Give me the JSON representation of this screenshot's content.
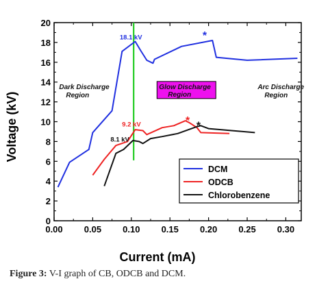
{
  "chart_data": {
    "type": "line",
    "xlabel": "Current (mA)",
    "ylabel": "Voltage (kV)",
    "xlim": [
      0.0,
      0.32
    ],
    "ylim": [
      0,
      20
    ],
    "x_ticks": [
      "0.00",
      "0.05",
      "0.10",
      "0.15",
      "0.20",
      "0.25",
      "0.30"
    ],
    "y_ticks": [
      "0",
      "2",
      "4",
      "6",
      "8",
      "10",
      "12",
      "14",
      "16",
      "18",
      "20"
    ],
    "grid": false,
    "legend_position": "lower-right",
    "series": [
      {
        "name": "DCM",
        "color": "#1f2fe0",
        "x": [
          0.005,
          0.02,
          0.045,
          0.05,
          0.075,
          0.088,
          0.105,
          0.112,
          0.12,
          0.128,
          0.13,
          0.165,
          0.205,
          0.21,
          0.25,
          0.315
        ],
        "y": [
          3.4,
          5.9,
          7.2,
          8.9,
          11.1,
          17.1,
          18.1,
          17.2,
          16.2,
          15.9,
          16.3,
          17.6,
          18.2,
          16.5,
          16.2,
          16.4
        ]
      },
      {
        "name": "ODCB",
        "color": "#ee2222",
        "x": [
          0.05,
          0.065,
          0.08,
          0.095,
          0.105,
          0.115,
          0.12,
          0.14,
          0.155,
          0.17,
          0.175,
          0.185,
          0.19,
          0.227
        ],
        "y": [
          4.6,
          6.2,
          7.6,
          8.0,
          9.2,
          9.1,
          8.7,
          9.4,
          9.6,
          10.1,
          9.9,
          9.4,
          8.9,
          8.8
        ]
      },
      {
        "name": "Chlorobenzene",
        "color": "#111111",
        "x": [
          0.065,
          0.08,
          0.09,
          0.102,
          0.11,
          0.115,
          0.125,
          0.14,
          0.16,
          0.185,
          0.19,
          0.2,
          0.26
        ],
        "y": [
          3.5,
          6.8,
          7.2,
          8.1,
          8.0,
          7.8,
          8.3,
          8.5,
          8.8,
          9.5,
          9.6,
          9.3,
          8.9
        ]
      }
    ],
    "vertical_line": {
      "x": 0.103,
      "color": "#22cc22"
    },
    "annotations": {
      "dcm_peak": {
        "text": "18.1 kV",
        "x": 0.085,
        "y": 18.3,
        "color": "#1f2fe0"
      },
      "odcb_peak": {
        "text": "9.2 kV",
        "x": 0.088,
        "y": 9.5,
        "color": "#ee2222"
      },
      "cb_peak": {
        "text": "8.1 kV",
        "x": 0.073,
        "y": 8.0,
        "color": "#111111"
      },
      "dark_region": {
        "line1": "Dark Discharge",
        "line2": "Region",
        "x": 0.003,
        "y": 13.3
      },
      "glow_region": {
        "line1": "Glow Discharge",
        "line2": "Region",
        "x": 0.135,
        "y": 13.3,
        "box_color": "#ee11ee"
      },
      "arc_region": {
        "line1": "Arc Discharge",
        "line2": "Region",
        "x": 0.26,
        "y": 13.3
      },
      "star_blue": {
        "text": "*",
        "x": 0.195,
        "y": 18.9,
        "color": "#1f2fe0"
      },
      "star_red": {
        "text": "*",
        "x": 0.173,
        "y": 10.3,
        "color": "#ee2222"
      },
      "star_black": {
        "text": "*",
        "x": 0.187,
        "y": 9.8,
        "color": "#111111"
      }
    }
  },
  "caption": {
    "label": "Figure 3:",
    "text": " V-I graph of CB, ODCB and DCM."
  }
}
